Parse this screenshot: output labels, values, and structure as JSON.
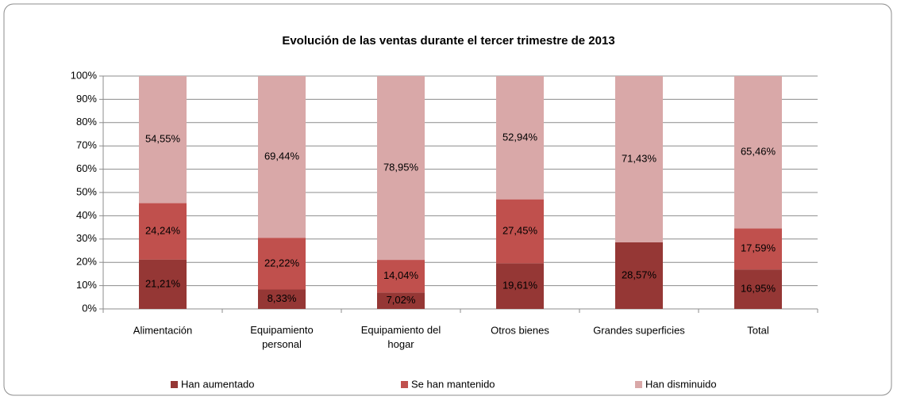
{
  "chart_data": {
    "type": "bar",
    "title": "Evolución de las ventas durante el  tercer trimestre de 2013",
    "categories": [
      "Alimentación",
      "Equipamiento\npersonal",
      "Equipamiento del\nhogar",
      "Otros bienes",
      "Grandes superficies",
      "Total"
    ],
    "stacked": true,
    "series": [
      {
        "name": "Han aumentado",
        "color": "#953735",
        "values": [
          21.21,
          8.33,
          7.02,
          19.61,
          28.57,
          16.95
        ],
        "value_labels": [
          "21,21%",
          "8,33%",
          "7,02%",
          "19,61%",
          "28,57%",
          "16,95%"
        ]
      },
      {
        "name": "Se han mantenido",
        "color": "#c0504d",
        "values": [
          24.24,
          22.22,
          14.04,
          27.45,
          0,
          17.59
        ],
        "value_labels": [
          "24,24%",
          "22,22%",
          "14,04%",
          "27,45%",
          null,
          "17,59%"
        ]
      },
      {
        "name": "Han disminuido",
        "color": "#d9a8a8",
        "values": [
          54.55,
          69.44,
          78.95,
          52.94,
          71.43,
          65.46
        ],
        "value_labels": [
          "54,55%",
          "69,44%",
          "78,95%",
          "52,94%",
          "71,43%",
          "65,46%"
        ]
      }
    ],
    "ylim": [
      0,
      100
    ],
    "yticks": [
      {
        "value": 0,
        "label": "0%"
      },
      {
        "value": 10,
        "label": "10%"
      },
      {
        "value": 20,
        "label": "20%"
      },
      {
        "value": 30,
        "label": "30%"
      },
      {
        "value": 40,
        "label": "40%"
      },
      {
        "value": 50,
        "label": "50%"
      },
      {
        "value": 60,
        "label": "60%"
      },
      {
        "value": 70,
        "label": "70%"
      },
      {
        "value": 80,
        "label": "80%"
      },
      {
        "value": 90,
        "label": "90%"
      },
      {
        "value": 100,
        "label": "100%"
      }
    ],
    "grid": true,
    "legend": "bottom"
  }
}
